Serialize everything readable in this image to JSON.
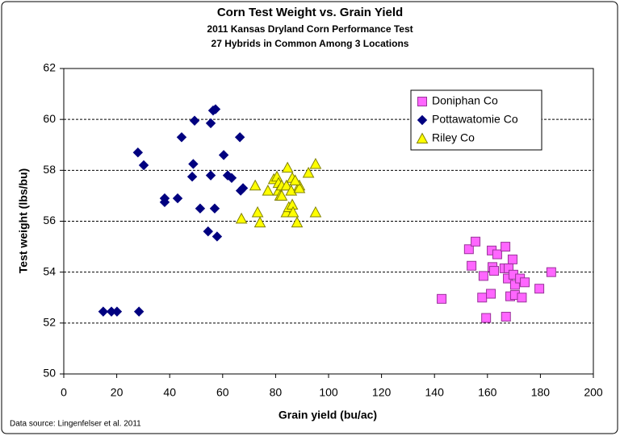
{
  "chart_data": {
    "type": "scatter",
    "title": "Corn Test Weight vs. Grain Yield",
    "subtitle": [
      "2011 Kansas Dryland Corn Performance Test",
      "27 Hybrids in Common Among 3 Locations"
    ],
    "x_label": "Grain yield (bu/ac)",
    "y_label": "Test weight (lbs/bu)",
    "source": "Data source: Lingenfelser et al. 2011",
    "xlim": [
      0,
      200
    ],
    "xticks": [
      0,
      20,
      40,
      60,
      80,
      100,
      120,
      140,
      160,
      180,
      200
    ],
    "ylim": [
      50,
      62
    ],
    "yticks": [
      50,
      52,
      54,
      56,
      58,
      60,
      62
    ],
    "grid": true,
    "legend": "upper right",
    "series": [
      {
        "name": "Doniphan Co",
        "color": "#ff66ff",
        "marker": "square",
        "x": [
          142.7,
          153.0,
          155.5,
          154.0,
          158.5,
          158.0,
          159.5,
          161.6,
          161.9,
          162.5,
          161.3,
          163.7,
          166.4,
          166.8,
          167.0,
          167.7,
          168.0,
          168.6,
          169.5,
          169.8,
          170.4,
          170.4,
          172.3,
          173.0,
          174.1,
          179.6,
          184.1
        ],
        "values": [
          52.95,
          54.9,
          55.2,
          54.25,
          53.85,
          53.0,
          52.2,
          54.85,
          54.2,
          54.05,
          53.15,
          54.7,
          54.15,
          55.0,
          52.25,
          53.75,
          54.15,
          53.05,
          54.5,
          53.9,
          53.5,
          53.1,
          53.75,
          53.0,
          53.6,
          53.35,
          54.0
        ]
      },
      {
        "name": "Pottawatomie Co",
        "color": "#000080",
        "marker": "diamond",
        "x": [
          14.9,
          18.0,
          20.1,
          28.4,
          28.0,
          30.2,
          38.1,
          38.1,
          43.0,
          44.5,
          49.4,
          48.9,
          48.5,
          51.5,
          55.5,
          56.4,
          57.3,
          55.5,
          57.0,
          54.5,
          57.9,
          60.4,
          61.9,
          63.4,
          66.5,
          66.8,
          67.7
        ],
        "values": [
          52.45,
          52.45,
          52.45,
          52.45,
          58.7,
          58.2,
          56.9,
          56.75,
          56.9,
          59.3,
          59.95,
          58.25,
          57.75,
          56.5,
          59.85,
          60.35,
          60.4,
          57.8,
          56.5,
          55.6,
          55.4,
          58.6,
          57.8,
          57.7,
          59.3,
          57.2,
          57.3
        ]
      },
      {
        "name": "Riley Co",
        "color": "#ffff00",
        "marker": "triangle",
        "x": [
          67.1,
          72.3,
          73.2,
          74.1,
          77.1,
          79.3,
          80.5,
          81.1,
          81.1,
          81.7,
          82.3,
          84.1,
          84.5,
          84.1,
          85.0,
          85.9,
          86.3,
          86.3,
          86.6,
          88.1,
          89.0,
          89.0,
          92.4,
          95.1,
          95.1,
          82.3,
          87.4
        ],
        "values": [
          56.1,
          57.4,
          56.35,
          55.95,
          57.2,
          57.65,
          57.75,
          57.5,
          57.2,
          57.0,
          57.4,
          56.35,
          58.1,
          57.4,
          56.55,
          57.2,
          57.7,
          56.65,
          56.35,
          55.95,
          57.4,
          57.3,
          57.9,
          58.25,
          56.35,
          57.0,
          57.6
        ]
      }
    ]
  }
}
